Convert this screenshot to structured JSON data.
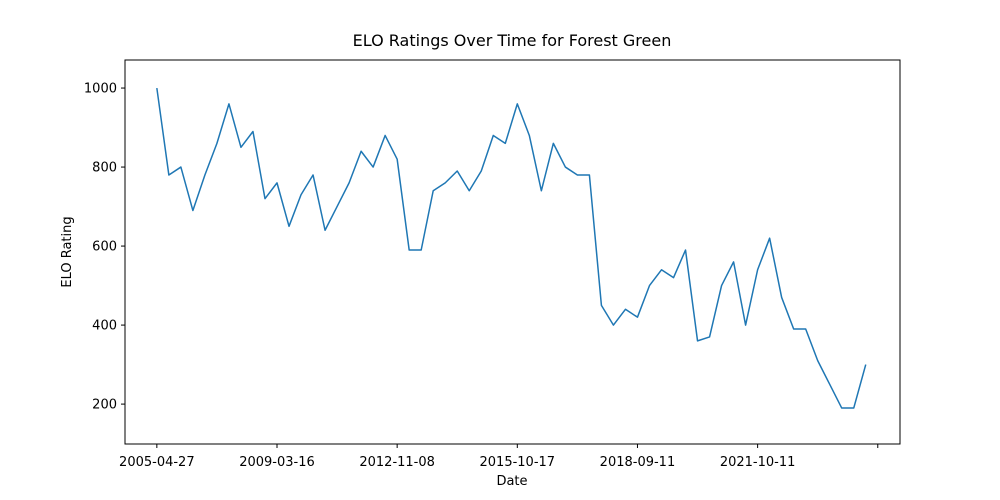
{
  "chart_data": {
    "type": "line",
    "title": "ELO Ratings Over Time for Forest Green",
    "xlabel": "Date",
    "ylabel": "ELO Rating",
    "categories": [
      "2005-04-27",
      null,
      null,
      null,
      null,
      null,
      null,
      null,
      null,
      null,
      "2009-03-16",
      null,
      null,
      null,
      null,
      null,
      null,
      null,
      null,
      null,
      "2012-11-08",
      null,
      null,
      null,
      null,
      null,
      null,
      null,
      null,
      null,
      "2015-10-17",
      null,
      null,
      null,
      null,
      null,
      null,
      null,
      null,
      null,
      "2018-09-11",
      null,
      null,
      null,
      null,
      null,
      null,
      null,
      null,
      null,
      "2021-10-11",
      null,
      null,
      null,
      null,
      null,
      null,
      null,
      null,
      null
    ],
    "xticks": [
      0,
      10,
      20,
      30,
      40,
      50,
      60
    ],
    "xlim": [
      -2.65,
      61.85
    ],
    "series": [
      {
        "name": "ELO Rating",
        "color": "#1f77b4",
        "values": [
          1000,
          780,
          800,
          690,
          780,
          860,
          960,
          850,
          890,
          720,
          760,
          650,
          730,
          780,
          640,
          700,
          760,
          840,
          800,
          880,
          820,
          590,
          590,
          740,
          760,
          790,
          740,
          790,
          880,
          860,
          960,
          880,
          740,
          860,
          800,
          780,
          780,
          450,
          400,
          440,
          420,
          500,
          540,
          520,
          590,
          360,
          370,
          500,
          560,
          400,
          540,
          620,
          470,
          390,
          390,
          310,
          250,
          190,
          190,
          300
        ]
      }
    ],
    "ylim": [
      99,
      1071
    ],
    "yticks": [
      200,
      400,
      600,
      800,
      1000
    ],
    "grid": false
  }
}
